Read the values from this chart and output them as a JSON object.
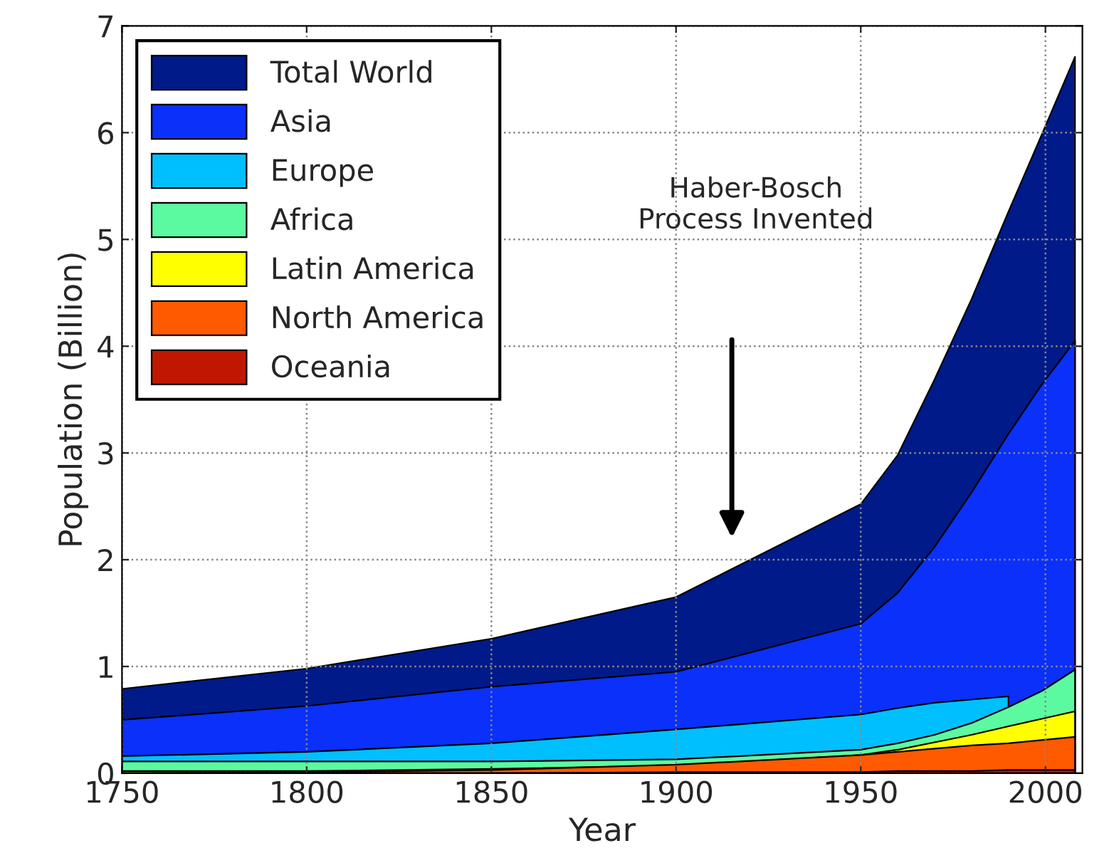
{
  "chart_data": {
    "type": "area",
    "xlabel": "Year",
    "ylabel": "Population (Billion)",
    "x": [
      1750,
      1800,
      1850,
      1900,
      1950,
      1960,
      1970,
      1980,
      1990,
      1999,
      2008
    ],
    "series": [
      {
        "name": "Total World",
        "color": "#001a8a",
        "values": [
          0.79,
          0.98,
          1.26,
          1.65,
          2.52,
          2.98,
          3.69,
          4.44,
          5.26,
          5.98,
          6.71
        ]
      },
      {
        "name": "Asia",
        "color": "#0a30fa",
        "values": [
          0.5,
          0.63,
          0.81,
          0.95,
          1.4,
          1.69,
          2.12,
          2.63,
          3.18,
          3.64,
          4.05
        ]
      },
      {
        "name": "Europe",
        "color": "#00bfff",
        "values": [
          0.16,
          0.2,
          0.28,
          0.41,
          0.55,
          0.61,
          0.66,
          0.69,
          0.72,
          null,
          null
        ]
      },
      {
        "name": "Africa",
        "color": "#5cfaa0",
        "values": [
          0.11,
          0.11,
          0.11,
          0.13,
          0.22,
          0.28,
          0.36,
          0.47,
          0.62,
          0.77,
          0.97
        ]
      },
      {
        "name": "Latin America",
        "color": "#ffff00",
        "values": [
          0.02,
          0.02,
          0.04,
          0.07,
          0.17,
          0.22,
          0.29,
          0.36,
          0.44,
          0.51,
          0.58
        ]
      },
      {
        "name": "North America",
        "color": "#ff5a00",
        "values": [
          0.0,
          0.01,
          0.03,
          0.08,
          0.17,
          0.2,
          0.23,
          0.26,
          0.28,
          0.31,
          0.34
        ]
      },
      {
        "name": "Oceania",
        "color": "#c01800",
        "values": [
          0.0,
          0.0,
          0.0,
          0.01,
          0.01,
          0.02,
          0.02,
          0.02,
          0.03,
          0.03,
          0.03
        ]
      }
    ],
    "xlim": [
      1750,
      2010
    ],
    "xticks": [
      1750,
      1800,
      1850,
      1900,
      1950,
      2000
    ],
    "ylim": [
      0,
      7
    ],
    "yticks": [
      0,
      1,
      2,
      3,
      4,
      5,
      6,
      7
    ],
    "annotations": [
      "Haber-Bosch\nProcess Invented"
    ],
    "grid": true,
    "legend": "top left"
  }
}
